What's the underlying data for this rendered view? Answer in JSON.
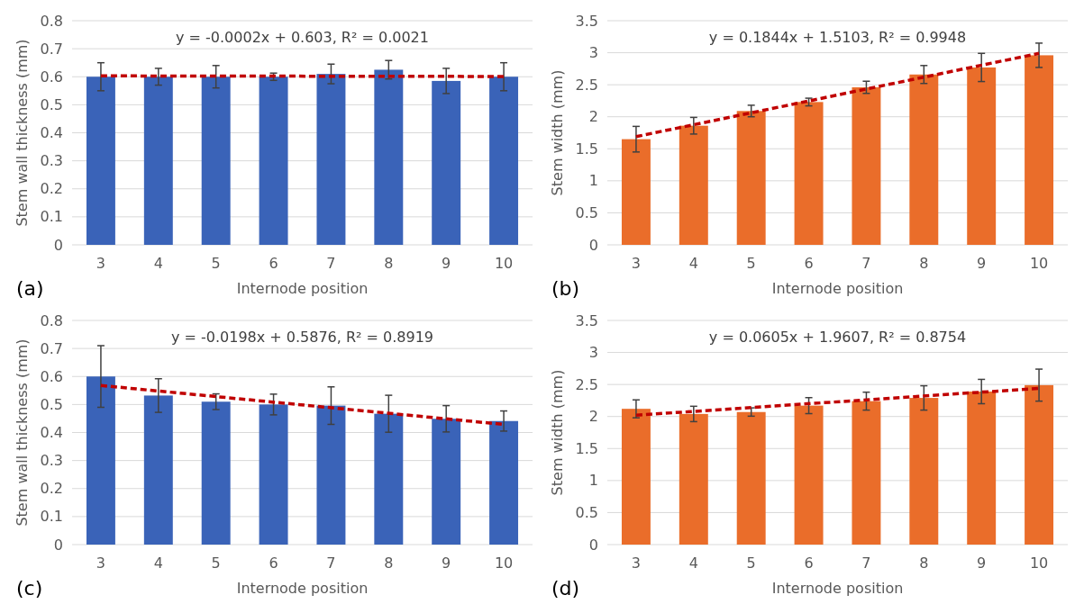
{
  "chart_data": [
    {
      "type": "bar",
      "categories": [
        "3",
        "4",
        "5",
        "6",
        "7",
        "8",
        "9",
        "10"
      ],
      "xlabel": "Internode position",
      "ylabel": "Stem wall thickness (mm)",
      "ylim": [
        0,
        0.8
      ],
      "yticks": [
        0,
        0.1,
        0.2,
        0.3,
        0.4,
        0.5,
        0.6,
        0.7,
        0.8
      ],
      "grid": "y",
      "annotations": [
        "y = -0.0002x + 0.603, R² = 0.0021",
        "(a)"
      ],
      "series": [
        {
          "color": "#3a63b8",
          "values": [
            0.6,
            0.6,
            0.6,
            0.6,
            0.61,
            0.625,
            0.585,
            0.6
          ],
          "errors": [
            0.05,
            0.03,
            0.04,
            0.013,
            0.035,
            0.033,
            0.045,
            0.05
          ]
        },
        {
          "type": "line",
          "color": "#c00000",
          "line_style": "dashed",
          "x": [
            "3",
            "10"
          ],
          "values": [
            0.603,
            0.601
          ]
        }
      ]
    },
    {
      "type": "bar",
      "categories": [
        "3",
        "4",
        "5",
        "6",
        "7",
        "8",
        "9",
        "10"
      ],
      "xlabel": "Internode position",
      "ylabel": "Stem width (mm)",
      "ylim": [
        0,
        3.5
      ],
      "yticks": [
        0,
        0.5,
        1,
        1.5,
        2,
        2.5,
        3,
        3.5
      ],
      "grid": "y",
      "annotations": [
        "y = 0.1844x + 1.5103, R² = 0.9948",
        "(b)"
      ],
      "series": [
        {
          "color": "#ea6d2a",
          "values": [
            1.65,
            1.86,
            2.09,
            2.23,
            2.46,
            2.66,
            2.77,
            2.96
          ],
          "errors": [
            0.2,
            0.13,
            0.09,
            0.06,
            0.095,
            0.14,
            0.22,
            0.19
          ]
        },
        {
          "type": "line",
          "color": "#c00000",
          "line_style": "dashed",
          "x": [
            "3",
            "10"
          ],
          "values": [
            1.69,
            2.99
          ]
        }
      ]
    },
    {
      "type": "bar",
      "categories": [
        "3",
        "4",
        "5",
        "6",
        "7",
        "8",
        "9",
        "10"
      ],
      "xlabel": "Internode position",
      "ylabel": "Stem wall thickness (mm)",
      "ylim": [
        0,
        0.8
      ],
      "yticks": [
        0,
        0.1,
        0.2,
        0.3,
        0.4,
        0.5,
        0.6,
        0.7,
        0.8
      ],
      "grid": "y",
      "annotations": [
        "y = -0.0198x + 0.5876, R² = 0.8919",
        "(c)"
      ],
      "series": [
        {
          "color": "#3a63b8",
          "values": [
            0.6,
            0.532,
            0.51,
            0.5,
            0.496,
            0.467,
            0.449,
            0.441
          ],
          "errors": [
            0.11,
            0.06,
            0.028,
            0.037,
            0.067,
            0.066,
            0.047,
            0.036
          ]
        },
        {
          "type": "line",
          "color": "#c00000",
          "line_style": "dashed",
          "x": [
            "3",
            "10"
          ],
          "values": [
            0.568,
            0.429
          ]
        }
      ]
    },
    {
      "type": "bar",
      "categories": [
        "3",
        "4",
        "5",
        "6",
        "7",
        "8",
        "9",
        "10"
      ],
      "xlabel": "Internode position",
      "ylabel": "Stem width (mm)",
      "ylim": [
        0,
        3.5
      ],
      "yticks": [
        0,
        0.5,
        1,
        1.5,
        2,
        2.5,
        3,
        3.5
      ],
      "grid": "y",
      "annotations": [
        "y = 0.0605x + 1.9607, R² = 0.8754",
        "(d)"
      ],
      "series": [
        {
          "color": "#ea6d2a",
          "values": [
            2.12,
            2.04,
            2.07,
            2.17,
            2.24,
            2.29,
            2.39,
            2.49
          ],
          "errors": [
            0.14,
            0.12,
            0.065,
            0.125,
            0.14,
            0.19,
            0.19,
            0.25
          ]
        },
        {
          "type": "line",
          "color": "#c00000",
          "line_style": "dashed",
          "x": [
            "3",
            "10"
          ],
          "values": [
            2.02,
            2.44
          ]
        }
      ]
    }
  ]
}
